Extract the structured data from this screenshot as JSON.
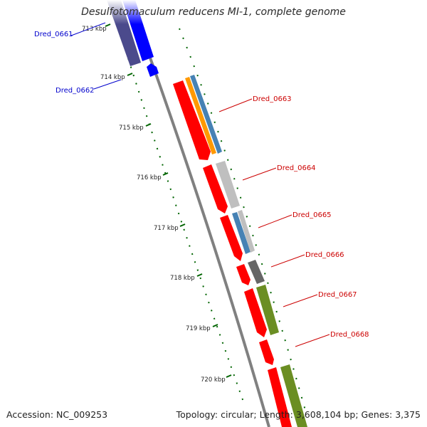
{
  "map": {
    "title": "Desulfotomaculum reducens MI-1, complete genome",
    "accession": "Accession: NC_009253",
    "summary": "Topology: circular; Length: 3,608,104 bp; Genes: 3,375"
  },
  "ticks": [
    "713 kbp",
    "714 kbp",
    "715 kbp",
    "716 kbp",
    "717 kbp",
    "718 kbp",
    "719 kbp",
    "720 kbp"
  ],
  "genes": [
    {
      "label": "Dred_0661",
      "strand": "reverse",
      "color": "#0000cc"
    },
    {
      "label": "Dred_0662",
      "strand": "reverse",
      "color": "#0000cc"
    },
    {
      "label": "Dred_0663",
      "strand": "forward",
      "color": "#cc0000"
    },
    {
      "label": "Dred_0664",
      "strand": "forward",
      "color": "#cc0000"
    },
    {
      "label": "Dred_0665",
      "strand": "forward",
      "color": "#cc0000"
    },
    {
      "label": "Dred_0666",
      "strand": "forward",
      "color": "#cc0000"
    },
    {
      "label": "Dred_0667",
      "strand": "forward",
      "color": "#cc0000"
    },
    {
      "label": "Dred_0668",
      "strand": "forward",
      "color": "#cc0000"
    }
  ],
  "colors": {
    "forward_gene": "#ff0000",
    "reverse_gene": "#0000ff",
    "reverse_cog": "#4b4a8c",
    "orange_cog": "#ff9900",
    "steelblue_cog": "#4682b4",
    "lightgray_cog": "#bfbfbf",
    "darkgray_cog": "#666666",
    "olive_cog": "#6b8e23",
    "backbone": "#808080",
    "tick": "#006400"
  }
}
